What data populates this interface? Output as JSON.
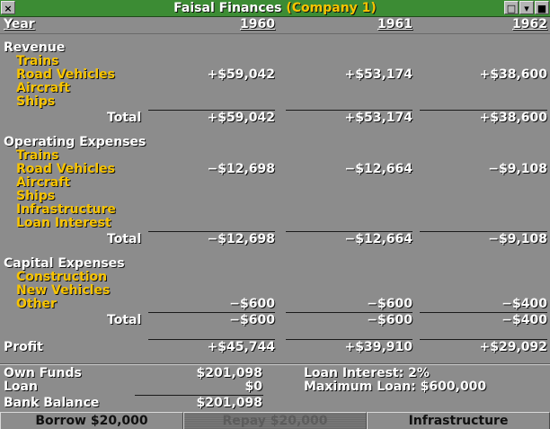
{
  "window": {
    "title": "Faisal Finances",
    "company": "(Company 1)",
    "buttons": {
      "close": "×",
      "shade": "□",
      "collapse": "▾",
      "sticky": "■"
    }
  },
  "table": {
    "year_label": "Year",
    "years": [
      "1960",
      "1961",
      "1962"
    ],
    "revenue": {
      "heading": "Revenue",
      "rows": [
        {
          "label": "Trains",
          "values": [
            "",
            "",
            ""
          ]
        },
        {
          "label": "Road Vehicles",
          "values": [
            "+$59,042",
            "+$53,174",
            "+$38,600"
          ]
        },
        {
          "label": "Aircraft",
          "values": [
            "",
            "",
            ""
          ]
        },
        {
          "label": "Ships",
          "values": [
            "",
            "",
            ""
          ]
        }
      ],
      "total_label": "Total",
      "totals": [
        "+$59,042",
        "+$53,174",
        "+$38,600"
      ]
    },
    "operating": {
      "heading": "Operating Expenses",
      "rows": [
        {
          "label": "Trains",
          "values": [
            "",
            "",
            ""
          ]
        },
        {
          "label": "Road Vehicles",
          "values": [
            "−$12,698",
            "−$12,664",
            "−$9,108"
          ]
        },
        {
          "label": "Aircraft",
          "values": [
            "",
            "",
            ""
          ]
        },
        {
          "label": "Ships",
          "values": [
            "",
            "",
            ""
          ]
        },
        {
          "label": "Infrastructure",
          "values": [
            "",
            "",
            ""
          ]
        },
        {
          "label": "Loan Interest",
          "values": [
            "",
            "",
            ""
          ]
        }
      ],
      "total_label": "Total",
      "totals": [
        "−$12,698",
        "−$12,664",
        "−$9,108"
      ]
    },
    "capital": {
      "heading": "Capital Expenses",
      "rows": [
        {
          "label": "Construction",
          "values": [
            "",
            "",
            ""
          ]
        },
        {
          "label": "New Vehicles",
          "values": [
            "",
            "",
            ""
          ]
        },
        {
          "label": "Other",
          "values": [
            "−$600",
            "−$600",
            "−$400"
          ]
        }
      ],
      "total_label": "Total",
      "totals": [
        "−$600",
        "−$600",
        "−$400"
      ]
    },
    "profit": {
      "label": "Profit",
      "values": [
        "+$45,744",
        "+$39,910",
        "+$29,092"
      ]
    }
  },
  "summary": {
    "own_funds_label": "Own Funds",
    "own_funds": "$201,098",
    "loan_label": "Loan",
    "loan": "$0",
    "bank_balance_label": "Bank Balance",
    "bank_balance": "$201,098",
    "loan_interest_label": "Loan Interest:",
    "loan_interest": "2%",
    "max_loan_label": "Maximum Loan:",
    "max_loan": "$600,000"
  },
  "buttons": {
    "borrow": "Borrow $20,000",
    "repay": "Repay $20,000",
    "infrastructure": "Infrastructure"
  },
  "colors": {
    "titlebar": "#3c8c34",
    "panel": "#8c8c8c",
    "category_text": "#f8c400",
    "heading_text": "#ffffff"
  }
}
